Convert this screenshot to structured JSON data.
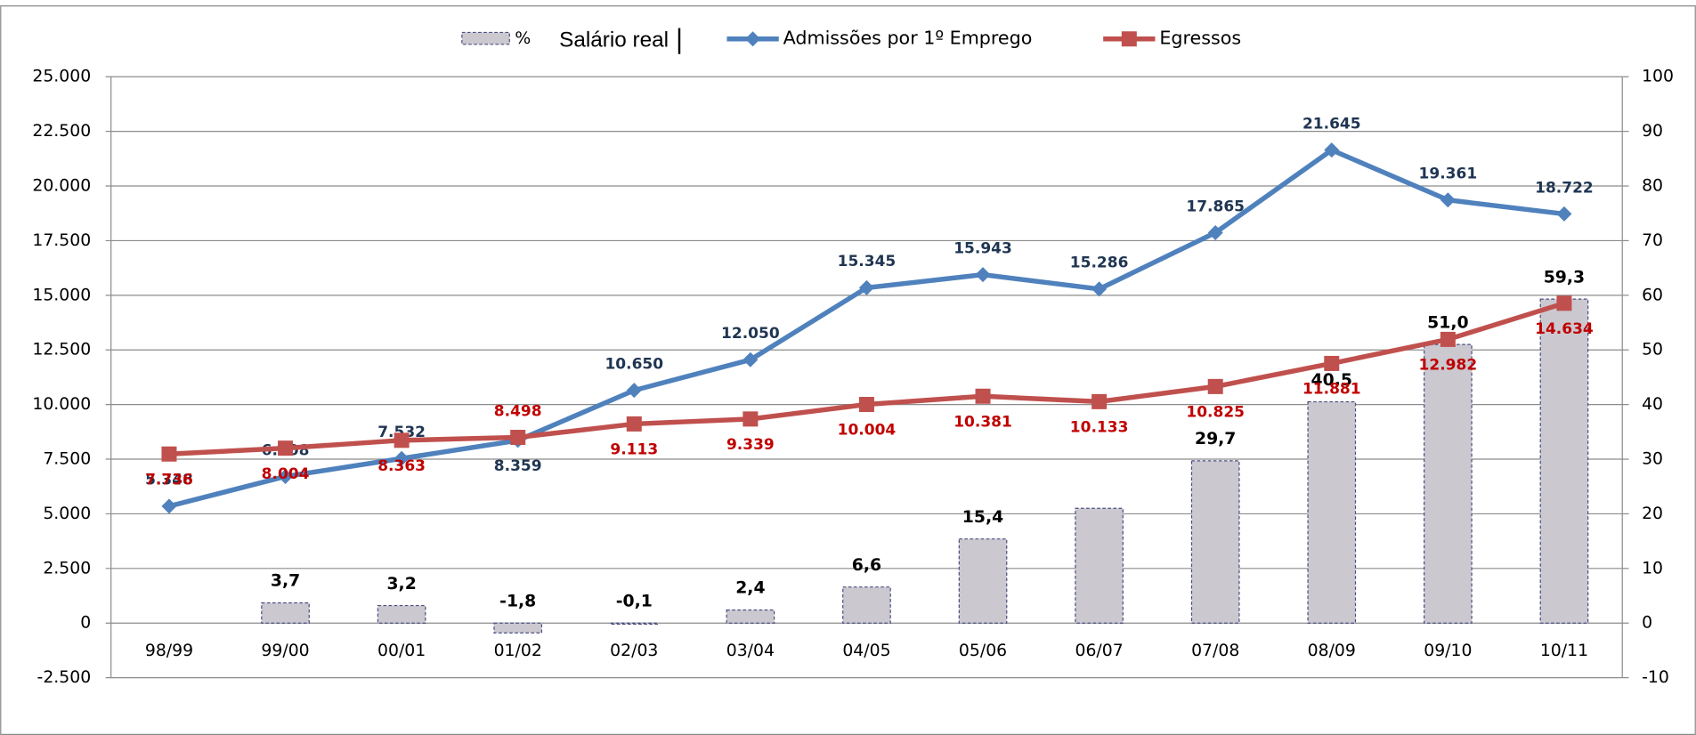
{
  "chart_data": {
    "type": "bar_line",
    "annotation": "Salário real",
    "categories": [
      "98/99",
      "99/00",
      "00/01",
      "01/02",
      "02/03",
      "03/04",
      "04/05",
      "05/06",
      "06/07",
      "07/08",
      "08/09",
      "09/10",
      "10/11"
    ],
    "series": [
      {
        "name": "%",
        "type": "bar",
        "axis": "y2",
        "color": "#ccc8d0",
        "values": [
          null,
          3.7,
          3.2,
          -1.8,
          -0.1,
          2.4,
          6.6,
          15.4,
          21.0,
          29.7,
          40.5,
          51.0,
          59.3
        ],
        "value_labels": [
          null,
          "3,7",
          "3,2",
          "-1,8",
          "-0,1",
          "2,4",
          "6,6",
          "15,4",
          null,
          "29,7",
          "40,5",
          "51,0",
          "59,3"
        ]
      },
      {
        "name": "Admissões por 1º Emprego",
        "type": "line",
        "color": "#4f81bd",
        "values": [
          5348,
          6708,
          7532,
          8359,
          10650,
          12050,
          15345,
          15943,
          15286,
          17865,
          21645,
          19361,
          18722
        ],
        "value_labels": [
          "5.348",
          "6.708",
          "7.532",
          "8.359",
          "10.650",
          "12.050",
          "15.345",
          "15.943",
          "15.286",
          "17.865",
          "21.645",
          "19.361",
          "18.722"
        ]
      },
      {
        "name": "Egressos",
        "type": "line",
        "color": "#c0504d",
        "values": [
          7736,
          8004,
          8363,
          8498,
          9113,
          9339,
          10004,
          10381,
          10133,
          10825,
          11881,
          12982,
          14634
        ],
        "value_labels": [
          "7.736",
          "8.004",
          "8.363",
          "8.498",
          "9.113",
          "9.339",
          "10.004",
          "10.381",
          "10.133",
          "10.825",
          "11.881",
          "12.982",
          "14.634"
        ]
      }
    ],
    "ylim": [
      -2500,
      25000
    ],
    "yticks": [
      {
        "value": -2500,
        "label": "-2.500"
      },
      0,
      {
        "value": 2500,
        "label": "2.500"
      },
      {
        "value": 5000,
        "label": "5.000"
      },
      {
        "value": 7500,
        "label": "7.500"
      },
      {
        "value": 10000,
        "label": "10.000"
      },
      {
        "value": 12500,
        "label": "12.500"
      },
      {
        "value": 15000,
        "label": "15.000"
      },
      {
        "value": 17500,
        "label": "17.500"
      },
      {
        "value": 20000,
        "label": "20.000"
      },
      {
        "value": 22500,
        "label": "22.500"
      },
      {
        "value": 25000,
        "label": "25.000"
      }
    ],
    "y2lim": [
      -10,
      100
    ],
    "y2ticks": [
      -10,
      0,
      10,
      20,
      30,
      40,
      50,
      60,
      70,
      80,
      90,
      100
    ],
    "grid": true,
    "legend": "top"
  }
}
